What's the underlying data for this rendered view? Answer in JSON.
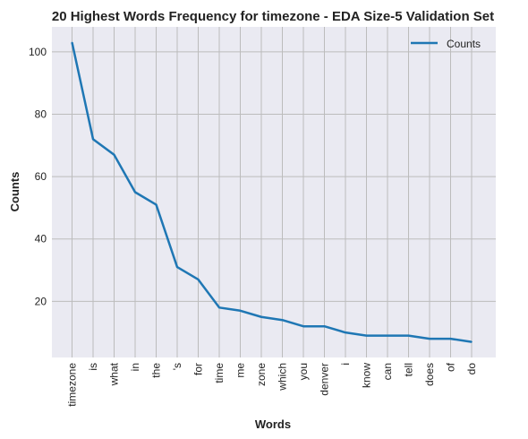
{
  "chart_data": {
    "type": "line",
    "title": "20 Highest Words Frequency for timezone - EDA Size-5 Validation Set",
    "xlabel": "Words",
    "ylabel": "Counts",
    "categories": [
      "timezone",
      "is",
      "what",
      "in",
      "the",
      "'s",
      "for",
      "time",
      "me",
      "zone",
      "which",
      "you",
      "denver",
      "i",
      "know",
      "can",
      "tell",
      "does",
      "of",
      "do"
    ],
    "series": [
      {
        "name": "Counts",
        "color": "#1f77b4",
        "values": [
          103,
          72,
          67,
          55,
          51,
          31,
          27,
          18,
          17,
          15,
          14,
          12,
          12,
          10,
          9,
          9,
          9,
          8,
          8,
          7
        ]
      }
    ],
    "ylim": [
      2,
      108
    ],
    "yticks": [
      20,
      40,
      60,
      80,
      100
    ],
    "grid": true,
    "legend_position": "top-right",
    "colors": {
      "plot_background": "#eaeaf2",
      "grid": "#bcbcbc",
      "line": "#1f77b4"
    }
  }
}
